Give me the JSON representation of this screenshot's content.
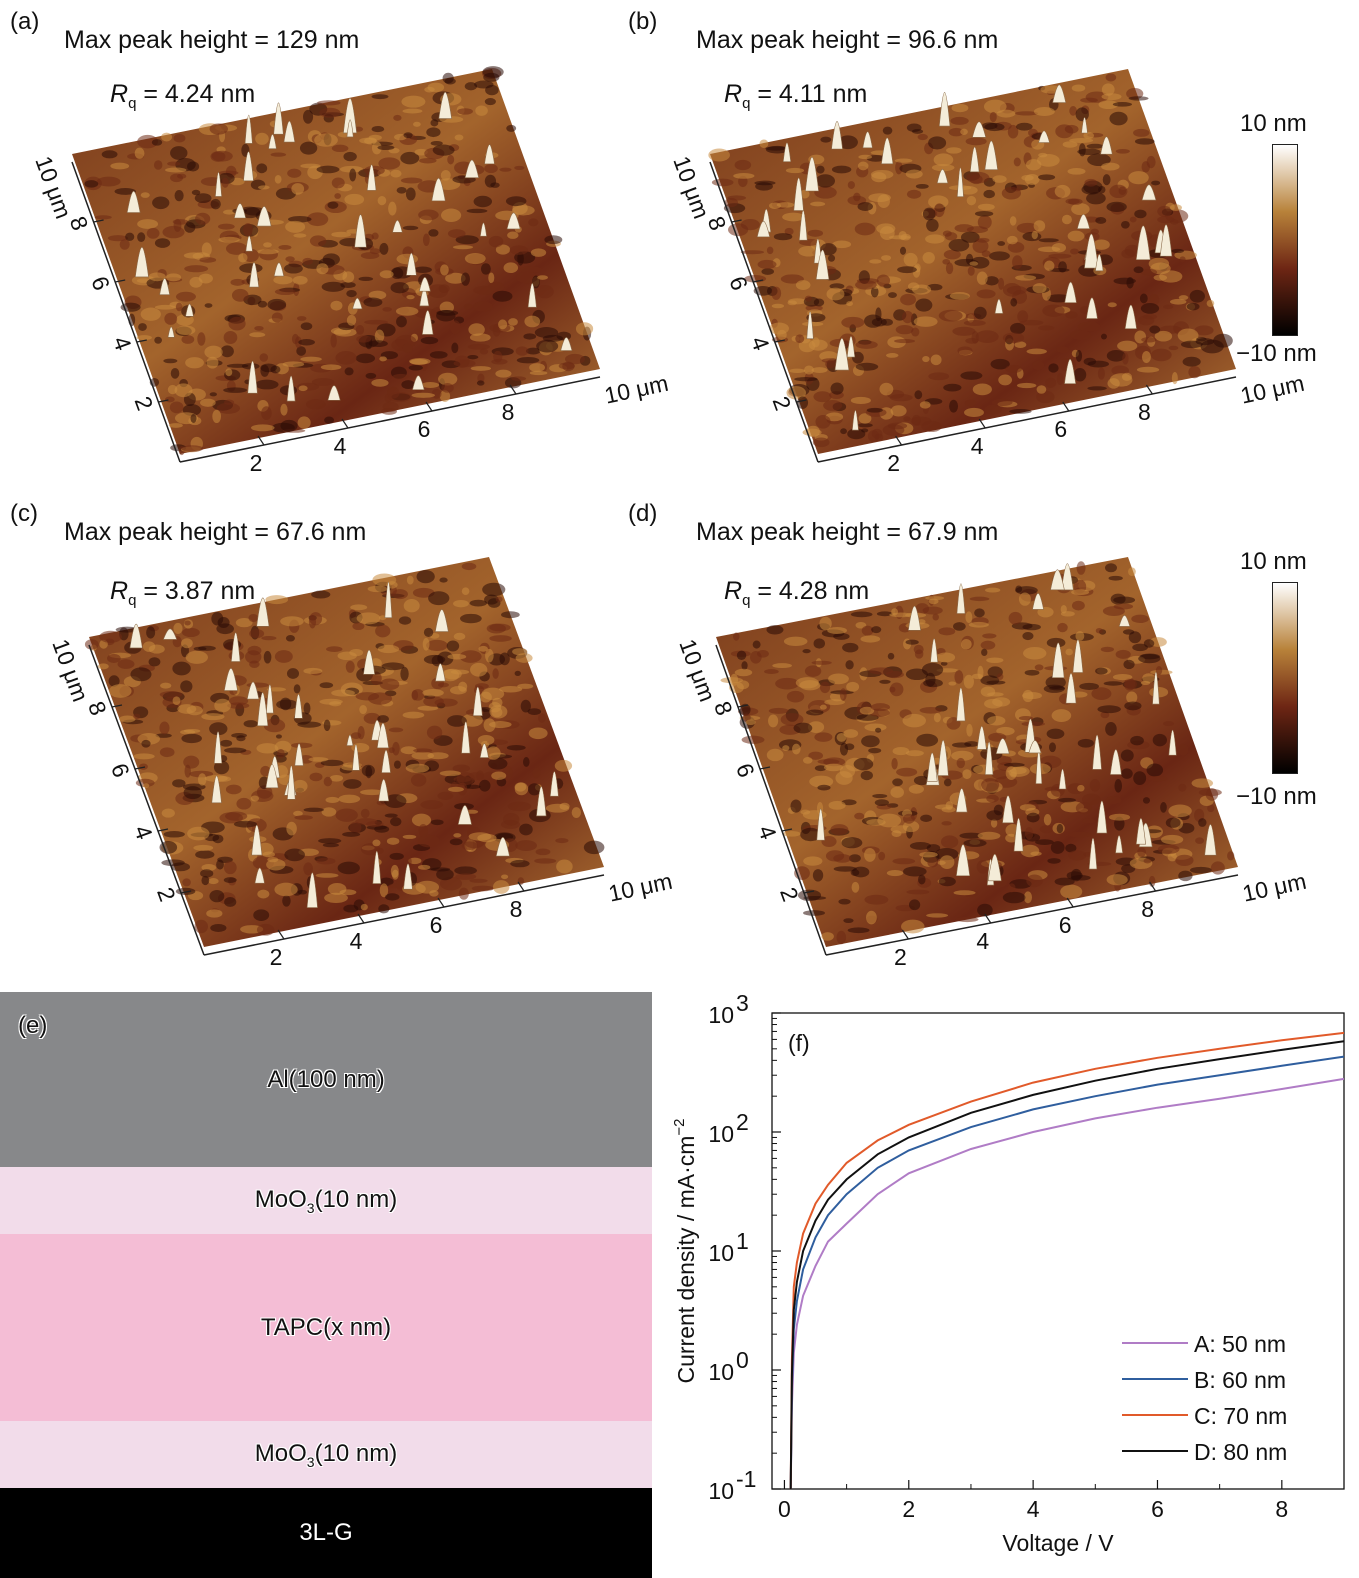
{
  "panels": [
    {
      "id": "a",
      "label": "(a)",
      "max_peak": "Max peak height = 129 nm",
      "rq_value": " = 4.24 nm"
    },
    {
      "id": "b",
      "label": "(b)",
      "max_peak": "Max peak height = 96.6 nm",
      "rq_value": " = 4.11 nm"
    },
    {
      "id": "c",
      "label": "(c)",
      "max_peak": "Max peak height = 67.6 nm",
      "rq_value": " = 3.87 nm"
    },
    {
      "id": "d",
      "label": "(d)",
      "max_peak": "Max peak height = 67.9 nm",
      "rq_value": " = 4.28 nm"
    }
  ],
  "rq_symbol": "R",
  "rq_sub": "q",
  "afm_axes": {
    "x_ticks": [
      "2",
      "4",
      "6",
      "8"
    ],
    "x_end": "10 μm",
    "y_ticks": [
      "2",
      "4",
      "6",
      "8"
    ],
    "y_end": "10 μm"
  },
  "colorbar": {
    "top": "10 nm",
    "bottom": "−10 nm"
  },
  "colors": {
    "afm_dark": "#2a0b06",
    "afm_mid": "#6e2a14",
    "afm_light": "#c98a3e",
    "afm_peak": "#f4ecd8",
    "layer_al": "#87888a",
    "layer_moo3": "#f2dcea",
    "layer_tapc": "#f4bdd5",
    "layer_3lg": "#000000"
  },
  "stack": {
    "label": "(e)",
    "layers": [
      {
        "name": "Al(100 nm)",
        "color": "#87888a"
      },
      {
        "name": "MoO",
        "sub": "3",
        "suffix": "(10 nm)",
        "color": "#f2dcea"
      },
      {
        "name": "TAPC(x nm)",
        "color": "#f4bdd5"
      },
      {
        "name": "MoO",
        "sub": "3",
        "suffix": "(10 nm)",
        "color": "#f2dcea"
      },
      {
        "name": "3L-G",
        "color": "#000000"
      }
    ]
  },
  "chart_data": {
    "type": "line",
    "panel_label": "(f)",
    "xlabel": "Voltage / V",
    "ylabel": "Current density / mA·cm",
    "ylabel_sup": "−2",
    "xlim": [
      -0.2,
      9
    ],
    "ylim": [
      0.1,
      1000
    ],
    "yscale": "log",
    "x_ticks": [
      "0",
      "2",
      "4",
      "6",
      "8"
    ],
    "x_tick_values": [
      0,
      2,
      4,
      6,
      8
    ],
    "y_tick_values": [
      0.1,
      1,
      10,
      100,
      1000
    ],
    "y_tick_base": "10",
    "y_tick_exps": [
      "-1",
      "0",
      "1",
      "2",
      "3"
    ],
    "legend_position": "bottom-right",
    "series": [
      {
        "name": "A: 50 nm",
        "color": "#b07cc6",
        "x": [
          0.1,
          0.12,
          0.15,
          0.2,
          0.3,
          0.5,
          0.7,
          1,
          1.5,
          2,
          3,
          4,
          5,
          6,
          7,
          8,
          9
        ],
        "y": [
          0.1,
          0.5,
          1.4,
          2.4,
          4.2,
          7.5,
          12,
          17,
          30,
          45,
          72,
          100,
          130,
          160,
          190,
          230,
          280
        ]
      },
      {
        "name": "B: 60 nm",
        "color": "#2f5e9e",
        "x": [
          0.1,
          0.12,
          0.15,
          0.2,
          0.3,
          0.5,
          0.7,
          1,
          1.5,
          2,
          3,
          4,
          5,
          6,
          7,
          8,
          9
        ],
        "y": [
          0.1,
          0.7,
          2.2,
          3.8,
          7,
          13,
          20,
          30,
          50,
          70,
          110,
          155,
          200,
          250,
          300,
          360,
          430
        ]
      },
      {
        "name": "C: 70 nm",
        "color": "#e15a2a",
        "x": [
          0.1,
          0.12,
          0.15,
          0.2,
          0.3,
          0.5,
          0.7,
          1,
          1.5,
          2,
          3,
          4,
          5,
          6,
          7,
          8,
          9
        ],
        "y": [
          0.1,
          1.2,
          5,
          8,
          14,
          25,
          36,
          55,
          85,
          115,
          180,
          260,
          340,
          420,
          500,
          590,
          680
        ]
      },
      {
        "name": "D: 80 nm",
        "color": "#111111",
        "x": [
          0.1,
          0.12,
          0.15,
          0.2,
          0.3,
          0.5,
          0.7,
          1,
          1.5,
          2,
          3,
          4,
          5,
          6,
          7,
          8,
          9
        ],
        "y": [
          0.1,
          0.9,
          3.2,
          5.5,
          10,
          18,
          27,
          40,
          65,
          90,
          145,
          205,
          270,
          340,
          410,
          490,
          580
        ]
      }
    ]
  }
}
